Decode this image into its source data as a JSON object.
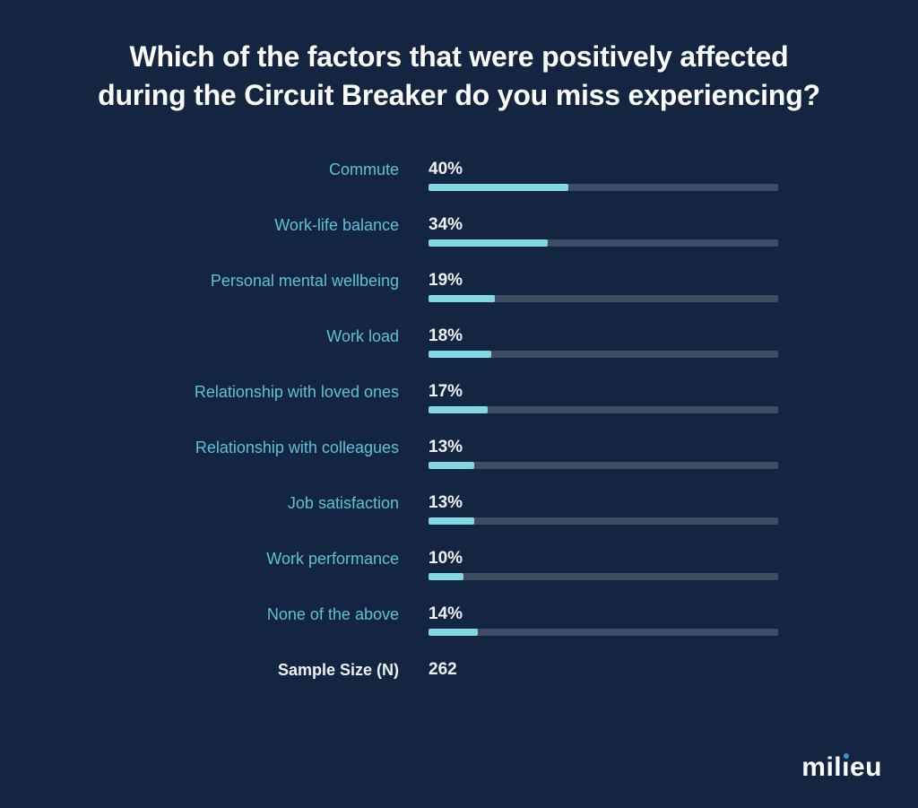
{
  "title": "Which of the factors that were positively affected during the Circuit Breaker do you miss experiencing?",
  "chart_data": {
    "type": "bar",
    "orientation": "horizontal",
    "title": "Which of the factors that were positively affected during the Circuit Breaker do you miss experiencing?",
    "categories": [
      "Commute",
      "Work-life balance",
      "Personal mental wellbeing",
      "Work load",
      "Relationship with loved ones",
      "Relationship with colleagues",
      "Job satisfaction",
      "Work performance",
      "None of the above"
    ],
    "values": [
      40,
      34,
      19,
      18,
      17,
      13,
      13,
      10,
      14
    ],
    "value_suffix": "%",
    "xlim": [
      0,
      100
    ],
    "grid": false,
    "legend": "none",
    "sample_size": {
      "label": "Sample Size (N)",
      "value": "262"
    },
    "colors": {
      "background": "#132540",
      "bar_fill": "#82d7e2",
      "bar_track": "#3e4c61",
      "label": "#5cc3d4",
      "value": "#eef2f4",
      "title": "#ffffff",
      "logo_dot": "#2b9dd8"
    }
  },
  "footer": {
    "logo_text": "milieu",
    "logo_pre": "mil",
    "logo_i_base": "ı",
    "logo_post": "eu"
  }
}
